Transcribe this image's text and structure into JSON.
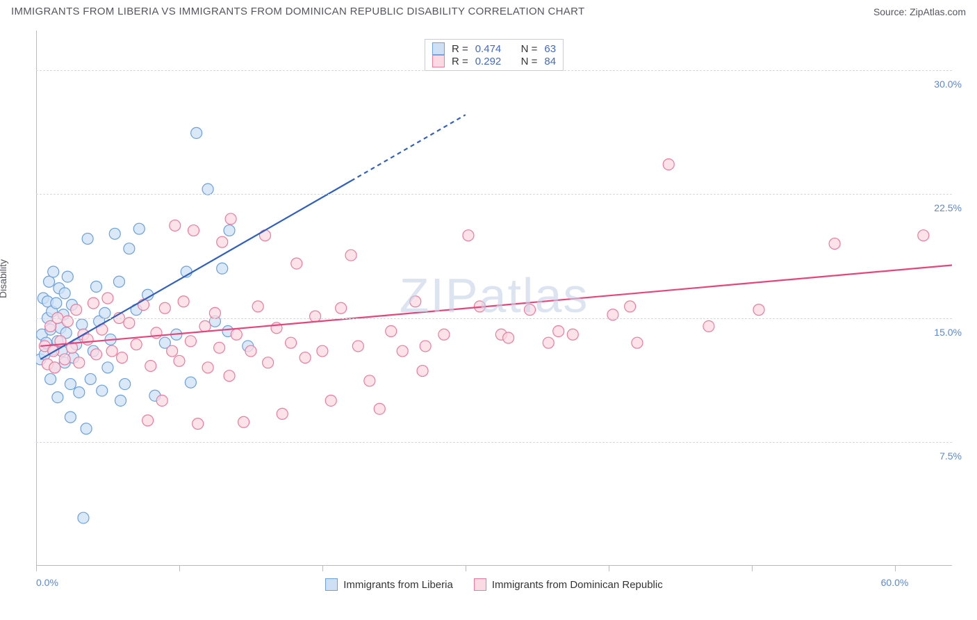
{
  "header": {
    "title": "IMMIGRANTS FROM LIBERIA VS IMMIGRANTS FROM DOMINICAN REPUBLIC DISABILITY CORRELATION CHART",
    "source_prefix": "Source: ",
    "source_name": "ZipAtlas.com"
  },
  "watermark": "ZIPatlas",
  "chart": {
    "type": "scatter-with-regression",
    "y_axis_title": "Disability",
    "background_color": "#ffffff",
    "grid_color": "#d8d8dc",
    "axis_color": "#b9b9c0",
    "label_color": "#5b87d6",
    "text_color": "#555560",
    "x_range": [
      0,
      64
    ],
    "y_range": [
      0,
      32.4
    ],
    "y_gridlines": [
      7.5,
      15.0,
      22.5,
      30.0
    ],
    "y_tick_labels": [
      "7.5%",
      "15.0%",
      "22.5%",
      "30.0%"
    ],
    "x_ticks": [
      0,
      10,
      20,
      30,
      40,
      50,
      60
    ],
    "x_tick_labels": {
      "start": "0.0%",
      "end": "60.0%"
    },
    "marker_radius": 8,
    "marker_stroke_width": 1.2,
    "series": [
      {
        "id": "liberia",
        "label": "Immigrants from Liberia",
        "color_fill": "#cfe0f5",
        "color_stroke": "#6aa0e0",
        "trend_color": "#2e5fc2",
        "trend_width": 2.2,
        "R": 0.474,
        "N": 63,
        "trend": {
          "x1": 0.3,
          "y1": 12.5,
          "x2": 22,
          "y2": 23.3,
          "dash_extend_x": 30,
          "dash_extend_y": 27.3
        },
        "points": [
          [
            0.3,
            12.5
          ],
          [
            0.4,
            14.0
          ],
          [
            0.5,
            16.2
          ],
          [
            0.6,
            12.8
          ],
          [
            0.7,
            13.5
          ],
          [
            0.8,
            16.0
          ],
          [
            0.8,
            15.0
          ],
          [
            0.9,
            17.2
          ],
          [
            1.0,
            14.3
          ],
          [
            1.0,
            11.3
          ],
          [
            1.1,
            15.4
          ],
          [
            1.2,
            13.1
          ],
          [
            1.2,
            17.8
          ],
          [
            1.3,
            12.0
          ],
          [
            1.4,
            15.9
          ],
          [
            1.5,
            13.6
          ],
          [
            1.5,
            10.2
          ],
          [
            1.6,
            16.8
          ],
          [
            1.7,
            14.4
          ],
          [
            1.8,
            13.0
          ],
          [
            1.9,
            15.2
          ],
          [
            2.0,
            12.3
          ],
          [
            2.0,
            16.5
          ],
          [
            2.1,
            14.1
          ],
          [
            2.2,
            17.5
          ],
          [
            2.4,
            9.0
          ],
          [
            2.4,
            11.0
          ],
          [
            2.5,
            15.8
          ],
          [
            2.6,
            12.6
          ],
          [
            2.8,
            13.4
          ],
          [
            3.0,
            10.5
          ],
          [
            3.2,
            14.6
          ],
          [
            3.3,
            2.9
          ],
          [
            3.5,
            8.3
          ],
          [
            3.6,
            19.8
          ],
          [
            3.8,
            11.3
          ],
          [
            4.0,
            13.0
          ],
          [
            4.2,
            16.9
          ],
          [
            4.4,
            14.8
          ],
          [
            4.6,
            10.6
          ],
          [
            4.8,
            15.3
          ],
          [
            5.0,
            12.0
          ],
          [
            5.2,
            13.7
          ],
          [
            5.5,
            20.1
          ],
          [
            5.8,
            17.2
          ],
          [
            5.9,
            10.0
          ],
          [
            6.2,
            11.0
          ],
          [
            6.5,
            19.2
          ],
          [
            7.0,
            15.5
          ],
          [
            7.2,
            20.4
          ],
          [
            7.8,
            16.4
          ],
          [
            8.3,
            10.3
          ],
          [
            9.0,
            13.5
          ],
          [
            9.8,
            14.0
          ],
          [
            10.5,
            17.8
          ],
          [
            11.2,
            26.2
          ],
          [
            12.0,
            22.8
          ],
          [
            12.5,
            14.8
          ],
          [
            13.4,
            14.2
          ],
          [
            13.5,
            20.3
          ],
          [
            14.8,
            13.3
          ],
          [
            13.0,
            18.0
          ],
          [
            10.8,
            11.1
          ]
        ]
      },
      {
        "id": "dominican",
        "label": "Immigrants from Dominican Republic",
        "color_fill": "#fbdae3",
        "color_stroke": "#ed7a9b",
        "trend_color": "#e8447a",
        "trend_width": 2.2,
        "R": 0.292,
        "N": 84,
        "trend": {
          "x1": 0.3,
          "y1": 13.3,
          "x2": 64,
          "y2": 18.2
        },
        "points": [
          [
            0.6,
            13.3
          ],
          [
            0.8,
            12.2
          ],
          [
            1.0,
            14.5
          ],
          [
            1.2,
            13.0
          ],
          [
            1.3,
            12.0
          ],
          [
            1.5,
            15.0
          ],
          [
            1.7,
            13.6
          ],
          [
            2.0,
            12.5
          ],
          [
            2.2,
            14.8
          ],
          [
            2.5,
            13.2
          ],
          [
            2.8,
            15.5
          ],
          [
            3.0,
            12.3
          ],
          [
            3.3,
            14.0
          ],
          [
            3.6,
            13.7
          ],
          [
            4.0,
            15.9
          ],
          [
            4.2,
            12.8
          ],
          [
            4.6,
            14.3
          ],
          [
            5.0,
            16.2
          ],
          [
            5.3,
            13.0
          ],
          [
            5.8,
            15.0
          ],
          [
            6.0,
            12.6
          ],
          [
            6.5,
            14.7
          ],
          [
            7.0,
            13.4
          ],
          [
            7.5,
            15.8
          ],
          [
            7.8,
            8.8
          ],
          [
            8.0,
            12.1
          ],
          [
            8.4,
            14.1
          ],
          [
            8.8,
            10.0
          ],
          [
            9.0,
            15.6
          ],
          [
            9.5,
            13.0
          ],
          [
            9.7,
            20.6
          ],
          [
            10.0,
            12.4
          ],
          [
            10.3,
            16.0
          ],
          [
            10.8,
            13.6
          ],
          [
            11.0,
            20.3
          ],
          [
            11.3,
            8.6
          ],
          [
            11.8,
            14.5
          ],
          [
            12.0,
            12.0
          ],
          [
            12.5,
            15.3
          ],
          [
            12.8,
            13.2
          ],
          [
            13.0,
            19.6
          ],
          [
            13.5,
            11.5
          ],
          [
            13.6,
            21.0
          ],
          [
            14.0,
            14.0
          ],
          [
            14.5,
            8.7
          ],
          [
            15.0,
            13.0
          ],
          [
            15.5,
            15.7
          ],
          [
            16.0,
            20.0
          ],
          [
            16.2,
            12.3
          ],
          [
            16.8,
            14.4
          ],
          [
            17.2,
            9.2
          ],
          [
            17.8,
            13.5
          ],
          [
            18.2,
            18.3
          ],
          [
            18.8,
            12.6
          ],
          [
            19.5,
            15.1
          ],
          [
            20.0,
            13.0
          ],
          [
            20.6,
            10.0
          ],
          [
            21.3,
            15.6
          ],
          [
            22.0,
            18.8
          ],
          [
            22.5,
            13.3
          ],
          [
            23.3,
            11.2
          ],
          [
            24.0,
            9.5
          ],
          [
            24.8,
            14.2
          ],
          [
            25.6,
            13.0
          ],
          [
            26.5,
            16.0
          ],
          [
            27.0,
            11.8
          ],
          [
            27.2,
            13.3
          ],
          [
            28.5,
            14.0
          ],
          [
            30.2,
            20.0
          ],
          [
            31.0,
            15.7
          ],
          [
            32.5,
            14.0
          ],
          [
            33.0,
            13.8
          ],
          [
            34.5,
            15.5
          ],
          [
            35.8,
            13.5
          ],
          [
            36.5,
            14.2
          ],
          [
            37.5,
            14.0
          ],
          [
            40.3,
            15.2
          ],
          [
            41.5,
            15.7
          ],
          [
            42.0,
            13.5
          ],
          [
            44.2,
            24.3
          ],
          [
            47.0,
            14.5
          ],
          [
            50.5,
            15.5
          ],
          [
            55.8,
            19.5
          ],
          [
            62.0,
            20.0
          ]
        ]
      }
    ]
  },
  "legend_top": {
    "r_label": "R =",
    "n_label": "N =",
    "rows": [
      {
        "swatch": "#cfe0f5",
        "swatch_border": "#6aa0e0",
        "r": "0.474",
        "n": "63"
      },
      {
        "swatch": "#fbdae3",
        "swatch_border": "#ed7a9b",
        "r": "0.292",
        "n": "84"
      }
    ]
  },
  "legend_bottom": [
    {
      "swatch": "#cfe0f5",
      "swatch_border": "#6aa0e0",
      "label": "Immigrants from Liberia"
    },
    {
      "swatch": "#fbdae3",
      "swatch_border": "#ed7a9b",
      "label": "Immigrants from Dominican Republic"
    }
  ]
}
